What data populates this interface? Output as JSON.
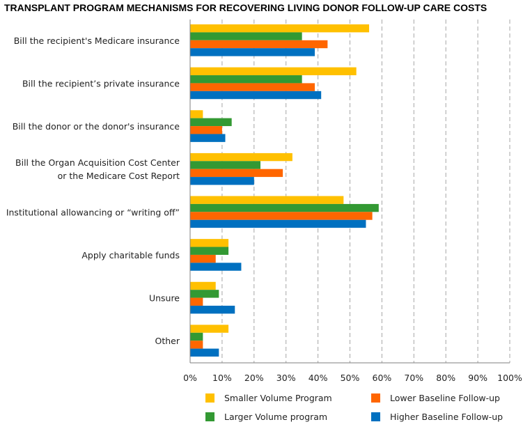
{
  "chart_data": {
    "type": "bar",
    "orientation": "horizontal",
    "title": "TRANSPLANT PROGRAM MECHANISMS FOR RECOVERING LIVING DONOR FOLLOW-UP CARE COSTS",
    "categories": [
      [
        "Bill the recipient's Medicare insurance"
      ],
      [
        "Bill the recipient’s private insurance"
      ],
      [
        "Bill the donor or the donor's insurance"
      ],
      [
        "Bill the Organ Acquisition Cost Center",
        "or the Medicare Cost Report"
      ],
      [
        "Institutional allowancing or “writing off”"
      ],
      [
        "Apply charitable funds"
      ],
      [
        "Unsure"
      ],
      [
        "Other"
      ]
    ],
    "series": [
      {
        "name": "Smaller Volume Program",
        "color": "#FFC000",
        "values": [
          56,
          52,
          4,
          32,
          48,
          12,
          8,
          12
        ]
      },
      {
        "name": "Larger Volume program",
        "color": "#339933",
        "values": [
          35,
          35,
          13,
          22,
          59,
          12,
          9,
          4
        ]
      },
      {
        "name": "Lower Baseline Follow-up",
        "color": "#FF6600",
        "values": [
          43,
          39,
          10,
          29,
          57,
          8,
          4,
          4
        ]
      },
      {
        "name": "Higher Baseline Follow-up",
        "color": "#0070C0",
        "values": [
          39,
          41,
          11,
          20,
          55,
          16,
          14,
          9
        ]
      }
    ],
    "xlim": [
      0,
      100
    ],
    "xticks": [
      0,
      10,
      20,
      30,
      40,
      50,
      60,
      70,
      80,
      90,
      100
    ],
    "tick_suffix": "%",
    "grid": "vertical dashed",
    "legend_position": "bottom"
  }
}
